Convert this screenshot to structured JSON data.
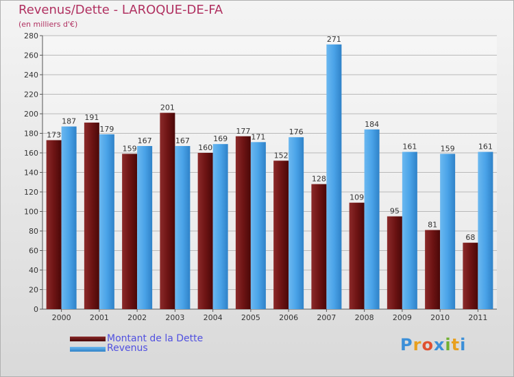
{
  "header": {
    "title": "Revenus/Dette - LAROQUE-DE-FA",
    "subtitle": "(en milliers d'€)"
  },
  "chart_data": {
    "type": "bar",
    "categories": [
      "2000",
      "2001",
      "2002",
      "2003",
      "2004",
      "2005",
      "2006",
      "2007",
      "2008",
      "2009",
      "2010",
      "2011"
    ],
    "series": [
      {
        "name": "Montant de la Dette",
        "values": [
          173,
          191,
          159,
          201,
          160,
          177,
          152,
          128,
          109,
          95,
          81,
          68
        ],
        "color": "#7a1a1a"
      },
      {
        "name": "Revenus",
        "values": [
          187,
          179,
          167,
          167,
          169,
          171,
          176,
          271,
          184,
          161,
          159,
          161
        ],
        "color": "#4aa3e8"
      }
    ],
    "ylim": [
      0,
      280
    ],
    "yticks": [
      0,
      20,
      40,
      60,
      80,
      100,
      120,
      140,
      160,
      180,
      200,
      220,
      240,
      260,
      280
    ],
    "grid": true,
    "legend": "bottom-left"
  },
  "logo": {
    "letters": [
      "P",
      "r",
      "o",
      "x",
      "i",
      "t",
      "i"
    ],
    "colors": [
      "#3b8fd8",
      "#e8a020",
      "#e05030",
      "#3b8fd8",
      "#70b030",
      "#e8a020",
      "#3b8fd8"
    ]
  }
}
